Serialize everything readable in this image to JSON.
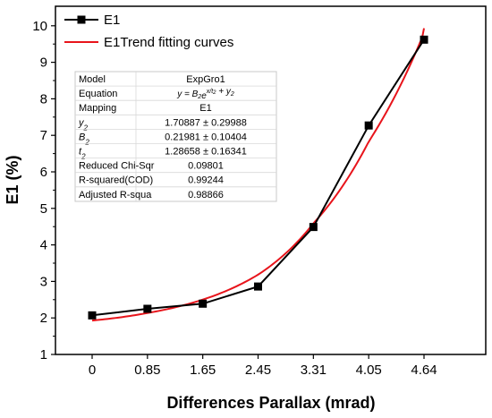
{
  "chart_data": {
    "type": "line",
    "title": "",
    "xlabel": "Differences Parallax (mrad)",
    "ylabel": "E1 (%)",
    "x_ticks": [
      "0",
      "0.85",
      "1.65",
      "2.45",
      "3.31",
      "4.05",
      "4.64"
    ],
    "ylim": [
      1,
      10.2
    ],
    "y_ticks": [
      1,
      2,
      3,
      4,
      5,
      6,
      7,
      8,
      9,
      10
    ],
    "grid": false,
    "legend_position": "top-left",
    "series": [
      {
        "name": "E1",
        "color": "#000000",
        "marker": "square",
        "x": [
          0,
          0.85,
          1.65,
          2.45,
          3.31,
          4.05,
          4.64
        ],
        "y": [
          2.07,
          2.25,
          2.39,
          2.86,
          4.49,
          7.27,
          9.62
        ]
      },
      {
        "name": "E1Trend fitting curves",
        "color": "#e8141b",
        "model": {
          "B2": 0.21981,
          "t2": 1.28658,
          "y2": 1.70887
        }
      }
    ],
    "fit_table": {
      "rows": [
        {
          "label": "Model",
          "value": "ExpGro1"
        },
        {
          "label": "Equation",
          "value": "y = B2e^(x/t2) + y2"
        },
        {
          "label": "Mapping",
          "value": "E1"
        },
        {
          "label": "y2",
          "label_sub": "2",
          "value": "1.70887 ± 0.29988"
        },
        {
          "label": "B2",
          "label_sub": "2",
          "value": "0.21981 ± 0.10404"
        },
        {
          "label": "t2",
          "label_sub": "2",
          "value": "1.28658 ± 0.16341"
        },
        {
          "label": "Reduced Chi-Sqr",
          "value": "0.09801"
        },
        {
          "label": "R-squared(COD)",
          "value": "0.99244"
        },
        {
          "label": "Adjusted R-squa",
          "value": "0.98866"
        }
      ]
    }
  }
}
